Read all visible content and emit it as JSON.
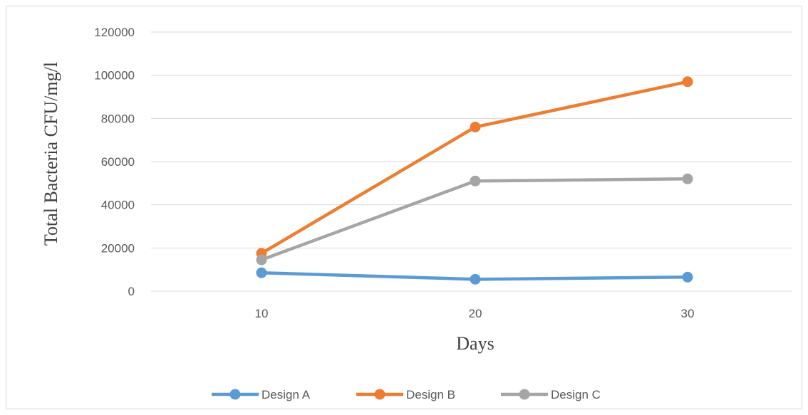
{
  "chart_data": {
    "type": "line",
    "title": "",
    "xlabel": "Days",
    "ylabel": "Total Bacteria CFU/mg/l",
    "categories": [
      "10",
      "20",
      "30"
    ],
    "y_ticks": [
      "0",
      "20000",
      "40000",
      "60000",
      "80000",
      "100000",
      "120000"
    ],
    "ylim": [
      0,
      120000
    ],
    "grid": true,
    "legend_position": "bottom",
    "series": [
      {
        "name": "Design A",
        "color": "#5b9bd5",
        "values": [
          8500,
          5500,
          6500
        ]
      },
      {
        "name": "Design B",
        "color": "#ed7d31",
        "values": [
          17500,
          76000,
          97000
        ]
      },
      {
        "name": "Design C",
        "color": "#a5a5a5",
        "values": [
          14500,
          51000,
          52000
        ]
      }
    ]
  }
}
